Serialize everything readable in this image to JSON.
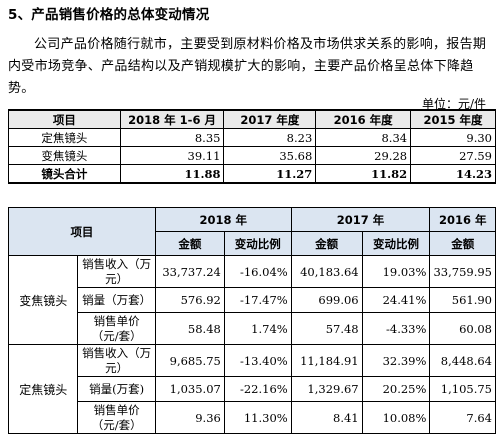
{
  "section": {
    "title": "5、产品销售价格的总体变动情况"
  },
  "paragraph": "公司产品价格随行就市，主要受到原材料价格及市场供求关系的影响，报告期内受市场竞争、产品结构以及产销规模扩大的影响，主要产品价格呈总体下降趋势。",
  "unit_note": "单位：元/件",
  "table1": {
    "headers": [
      "项目",
      "2018 年 1-6 月",
      "2017 年度",
      "2016 年度",
      "2015 年度"
    ],
    "rows": [
      {
        "label": "定焦镜头",
        "values": [
          "8.35",
          "8.23",
          "8.34",
          "9.30"
        ]
      },
      {
        "label": "变焦镜头",
        "values": [
          "39.11",
          "35.68",
          "29.28",
          "27.59"
        ]
      },
      {
        "label": "镜头合计",
        "values": [
          "11.88",
          "11.27",
          "11.82",
          "14.23"
        ]
      }
    ]
  },
  "table2": {
    "item_header": "项目",
    "years": [
      "2018 年",
      "2017 年",
      "2016 年"
    ],
    "sub_headers": [
      "金额",
      "变动比例",
      "金额",
      "变动比例",
      "金额"
    ],
    "groups": [
      {
        "name": "变焦镜头",
        "rows": [
          {
            "metric": "销售收入（万元）",
            "values": [
              "33,737.24",
              "-16.04%",
              "40,183.64",
              "19.03%",
              "33,759.95"
            ]
          },
          {
            "metric": "销量（万套）",
            "values": [
              "576.92",
              "-17.47%",
              "699.06",
              "24.41%",
              "561.90"
            ]
          },
          {
            "metric": "销售单价（元/套）",
            "values": [
              "58.48",
              "1.74%",
              "57.48",
              "-4.33%",
              "60.08"
            ]
          }
        ]
      },
      {
        "name": "定焦镜头",
        "rows": [
          {
            "metric": "销售收入（万元）",
            "values": [
              "9,685.75",
              "-13.40%",
              "11,184.91",
              "32.39%",
              "8,448.64"
            ]
          },
          {
            "metric": "销量(万套)",
            "values": [
              "1,035.07",
              "-22.16%",
              "1,329.67",
              "20.25%",
              "1,105.75"
            ]
          },
          {
            "metric": "销售单价（元/套）",
            "values": [
              "9.36",
              "11.30%",
              "8.41",
              "10.08%",
              "7.64"
            ]
          }
        ]
      }
    ]
  }
}
